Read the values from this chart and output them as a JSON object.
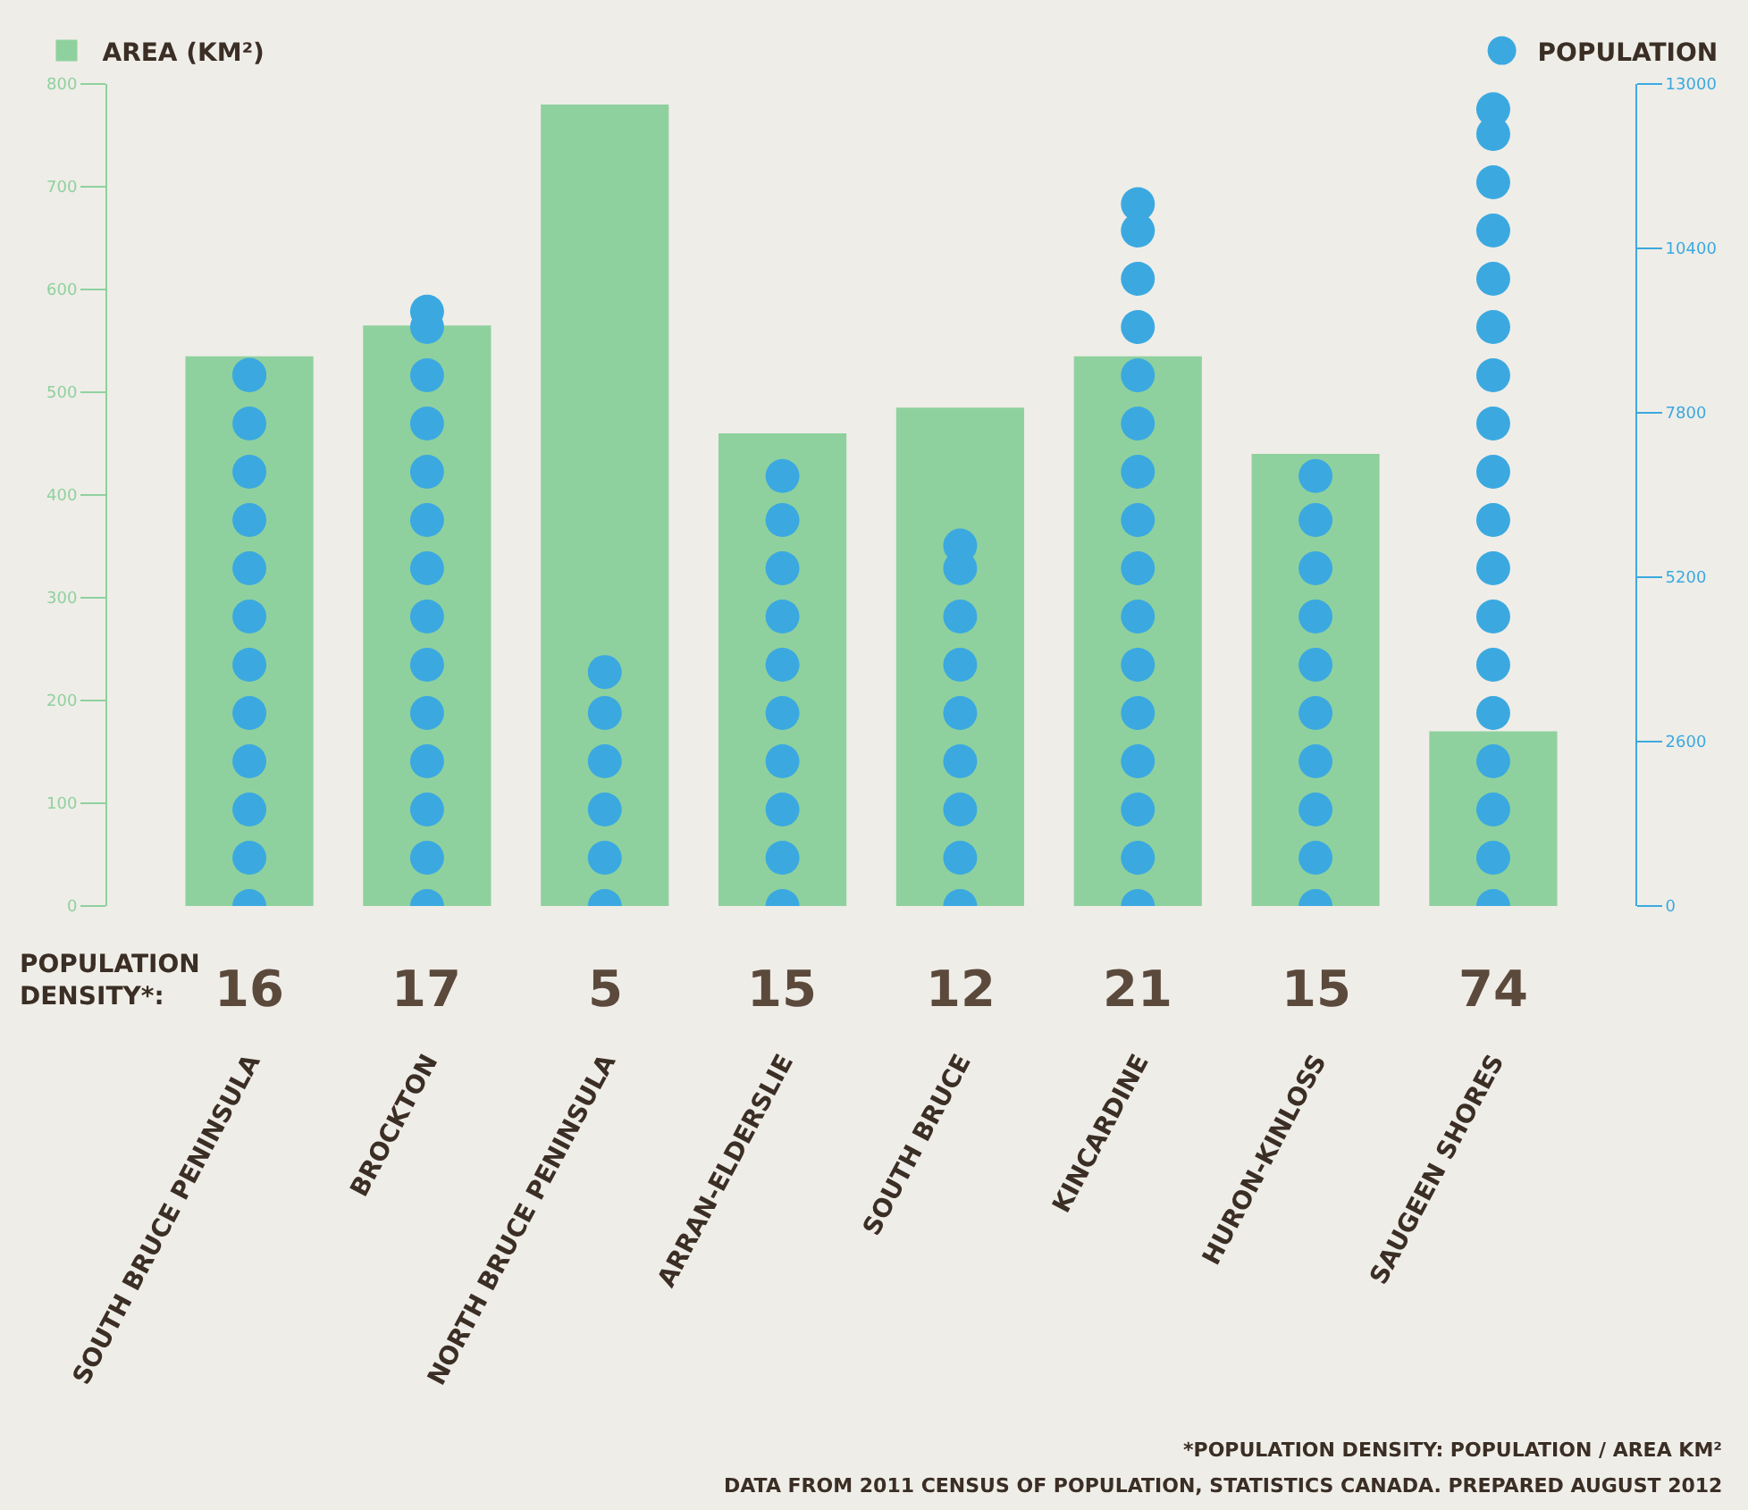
{
  "chart_data": {
    "type": "bar",
    "categories": [
      "SOUTH BRUCE PENINSULA",
      "BROCKTON",
      "NORTH BRUCE PENINSULA",
      "ARRAN-ELDERSLIE",
      "SOUTH BRUCE",
      "KINCARDINE",
      "HURON-KINLOSS",
      "SAUGEEN SHORES"
    ],
    "series": [
      {
        "name": "AREA (KM²)",
        "color": "#8fd19e",
        "values": [
          535,
          565,
          780,
          460,
          485,
          535,
          440,
          170
        ]
      },
      {
        "name": "POPULATION",
        "type": "lollipop",
        "axis": "y2",
        "color": "#3ba9e0",
        "values": [
          8400,
          9400,
          3700,
          6800,
          5700,
          11100,
          6800,
          12600
        ]
      }
    ],
    "ylim": [
      0,
      800
    ],
    "yticks": [
      0,
      100,
      200,
      300,
      400,
      500,
      600,
      700,
      800
    ],
    "y2lim": [
      0,
      13000
    ],
    "y2ticks": [
      0,
      2600,
      5200,
      7800,
      10400,
      13000
    ],
    "grid": false,
    "legend": "top",
    "annotations": [
      "POPULATION DENSITY*:",
      "16",
      "17",
      "5",
      "15",
      "12",
      "21",
      "15",
      "74",
      "*POPULATION DENSITY: POPULATION / AREA KM²",
      "DATA FROM 2011 CENSUS OF POPULATION, STATISTICS CANADA. PREPARED AUGUST 2012"
    ]
  }
}
